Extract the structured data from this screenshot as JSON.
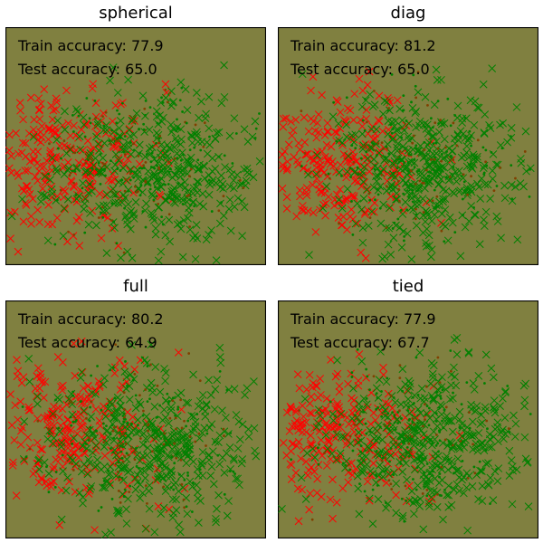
{
  "chart_data": [
    {
      "type": "scatter",
      "title": "spherical",
      "annotations": [
        "Train accuracy: 77.9",
        "Test accuracy: 65.0"
      ],
      "background_color": "#808040",
      "ticks_visible": false,
      "xlim": [
        -10,
        10
      ],
      "ylim": [
        -10,
        10
      ],
      "series_colors": {
        "class_a": "#ff0000",
        "class_b": "#008000",
        "class_c": "#804000"
      },
      "seed": 11
    },
    {
      "type": "scatter",
      "title": "diag",
      "annotations": [
        "Train accuracy: 81.2",
        "Test accuracy: 65.0"
      ],
      "background_color": "#808040",
      "ticks_visible": false,
      "xlim": [
        -10,
        10
      ],
      "ylim": [
        -10,
        10
      ],
      "series_colors": {
        "class_a": "#ff0000",
        "class_b": "#008000",
        "class_c": "#804000"
      },
      "seed": 11
    },
    {
      "type": "scatter",
      "title": "full",
      "annotations": [
        "Train accuracy: 80.2",
        "Test accuracy: 64.9"
      ],
      "background_color": "#808040",
      "ticks_visible": false,
      "xlim": [
        -10,
        10
      ],
      "ylim": [
        -10,
        10
      ],
      "series_colors": {
        "class_a": "#ff0000",
        "class_b": "#008000",
        "class_c": "#804000"
      },
      "seed": 11
    },
    {
      "type": "scatter",
      "title": "tied",
      "annotations": [
        "Train accuracy: 77.9",
        "Test accuracy: 67.7"
      ],
      "background_color": "#808040",
      "ticks_visible": false,
      "xlim": [
        -10,
        10
      ],
      "ylim": [
        -10,
        10
      ],
      "series_colors": {
        "class_a": "#ff0000",
        "class_b": "#008000",
        "class_c": "#804000"
      },
      "seed": 11
    }
  ]
}
